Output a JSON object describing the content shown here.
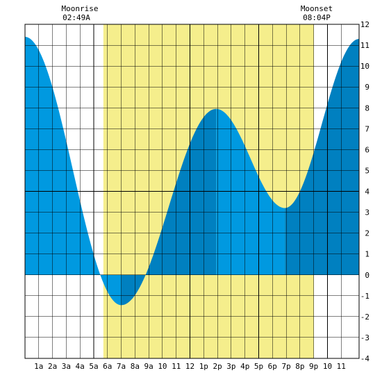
{
  "chart_data": {
    "type": "area",
    "x_range_hours": [
      0,
      24.3
    ],
    "ylim": [
      -4,
      12
    ],
    "grid": true,
    "x_tick_labels": [
      "1a",
      "2a",
      "3a",
      "4a",
      "5a",
      "6a",
      "7a",
      "8a",
      "9a",
      "10",
      "11",
      "12",
      "1p",
      "2p",
      "3p",
      "4p",
      "5p",
      "6p",
      "7p",
      "8p",
      "9p",
      "10",
      "11"
    ],
    "y_tick_labels": [
      "12",
      "11",
      "10",
      "9",
      "8",
      "7",
      "6",
      "5",
      "4",
      "3",
      "2",
      "1",
      "0",
      "-1",
      "-2",
      "-3",
      "-4"
    ],
    "daylight": {
      "start_hour": 5.7,
      "end_hour": 21.0
    },
    "tide_extrema": [
      {
        "hour": 0.0,
        "height": 11.4
      },
      {
        "hour": 7.0,
        "height": -1.45
      },
      {
        "hour": 13.9,
        "height": 7.95
      },
      {
        "hour": 18.9,
        "height": 3.2
      },
      {
        "hour": 24.3,
        "height": 11.3
      }
    ],
    "series": [
      {
        "values_hours": [
          0,
          7.0,
          13.9,
          18.9,
          24.3
        ]
      }
    ],
    "annotations": [
      {
        "title": "Moonrise",
        "time": "02:49A",
        "hour": 2.82
      },
      {
        "title": "Moonset",
        "time": "08:04P",
        "hour": 20.07
      }
    ],
    "colors": {
      "rising": "#0080c0",
      "falling": "#0099e0",
      "daylight": "#f5ee8c",
      "grid": "#000000",
      "background": "#ffffff"
    }
  }
}
